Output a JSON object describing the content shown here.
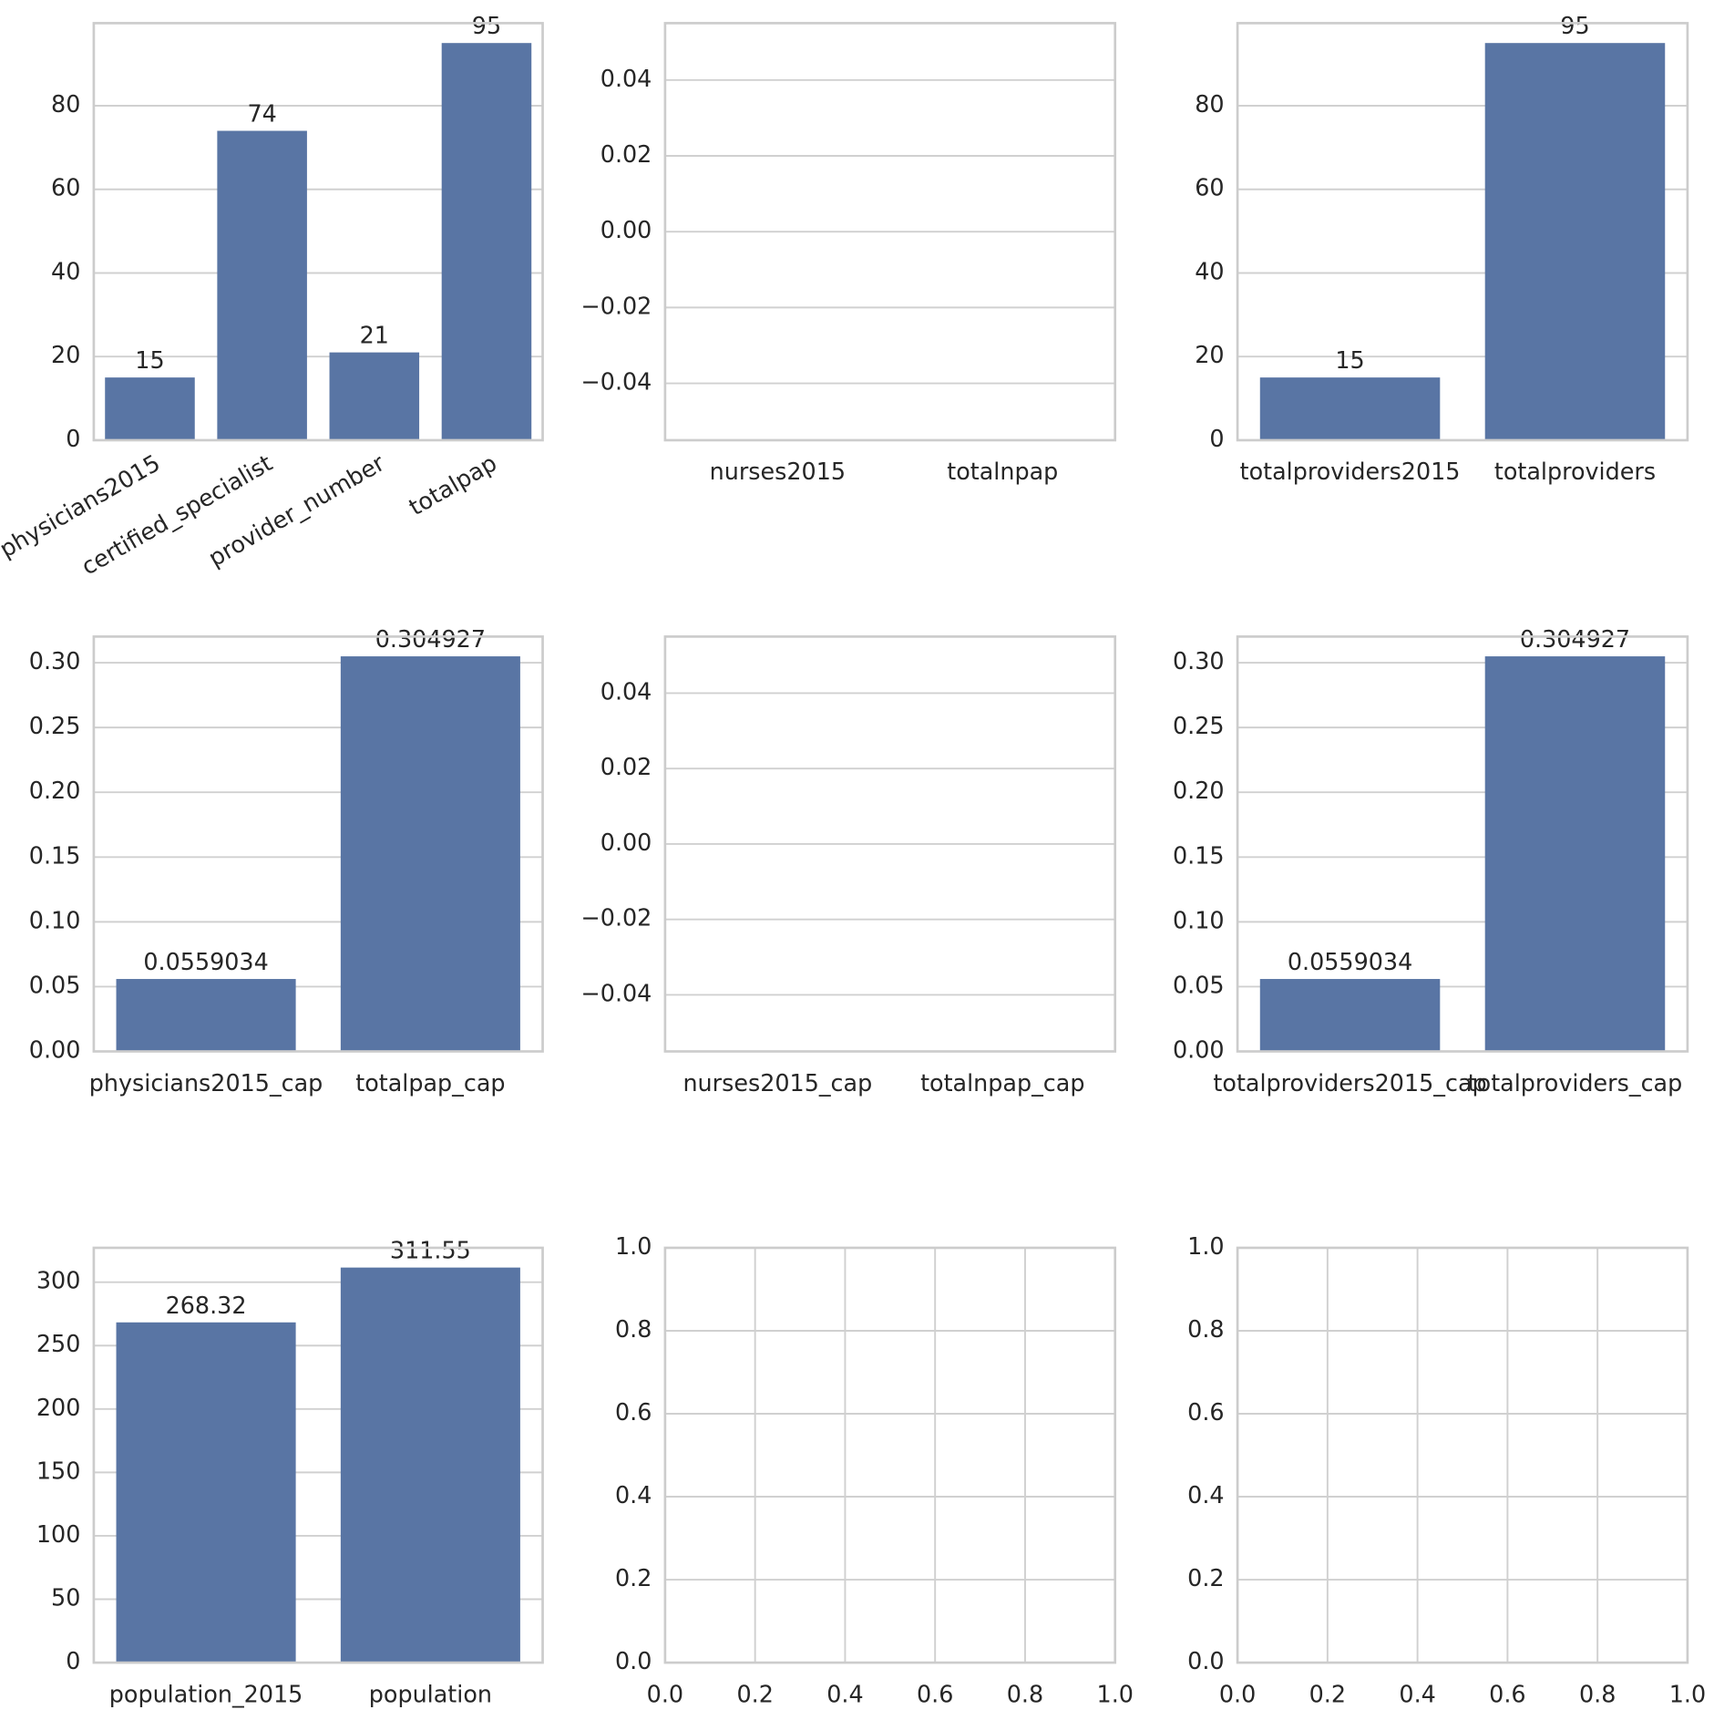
{
  "chart_data": [
    {
      "type": "bar",
      "categories": [
        "physicians2015",
        "certified_specialist",
        "provider_number",
        "totalpap"
      ],
      "values": [
        15,
        74,
        21,
        95
      ],
      "color": "#5975a4",
      "ylim": [
        0,
        99.75
      ],
      "yticks": [
        0,
        20,
        40,
        60,
        80
      ],
      "grid": true,
      "rotate_labels": true
    },
    {
      "type": "bar",
      "categories": [
        "nurses2015",
        "totalnpap"
      ],
      "values": [
        null,
        null
      ],
      "color": "#5975a4",
      "ylim": [
        -0.055,
        0.055
      ],
      "yticks": [
        {
          "value": -0.04,
          "label": "−0.04"
        },
        {
          "value": -0.02,
          "label": "−0.02"
        },
        {
          "value": 0,
          "label": "0.00"
        },
        {
          "value": 0.02,
          "label": "0.02"
        },
        {
          "value": 0.04,
          "label": "0.04"
        }
      ],
      "grid": true
    },
    {
      "type": "bar",
      "categories": [
        "totalproviders2015",
        "totalproviders"
      ],
      "values": [
        15,
        95
      ],
      "color": "#5975a4",
      "ylim": [
        0,
        99.75
      ],
      "yticks": [
        0,
        20,
        40,
        60,
        80
      ],
      "grid": true
    },
    {
      "type": "bar",
      "categories": [
        "physicians2015_cap",
        "totalpap_cap"
      ],
      "values": [
        0.0559034,
        0.304927
      ],
      "color": "#5975a4",
      "ylim": [
        0,
        0.32017
      ],
      "yticks": [
        {
          "value": 0,
          "label": "0.00"
        },
        {
          "value": 0.05,
          "label": "0.05"
        },
        {
          "value": 0.1,
          "label": "0.10"
        },
        {
          "value": 0.15,
          "label": "0.15"
        },
        {
          "value": 0.2,
          "label": "0.20"
        },
        {
          "value": 0.25,
          "label": "0.25"
        },
        {
          "value": 0.3,
          "label": "0.30"
        }
      ],
      "grid": true
    },
    {
      "type": "bar",
      "categories": [
        "nurses2015_cap",
        "totalnpap_cap"
      ],
      "values": [
        null,
        null
      ],
      "color": "#5975a4",
      "ylim": [
        -0.055,
        0.055
      ],
      "yticks": [
        {
          "value": -0.04,
          "label": "−0.04"
        },
        {
          "value": -0.02,
          "label": "−0.02"
        },
        {
          "value": 0,
          "label": "0.00"
        },
        {
          "value": 0.02,
          "label": "0.02"
        },
        {
          "value": 0.04,
          "label": "0.04"
        }
      ],
      "grid": true
    },
    {
      "type": "bar",
      "categories": [
        "totalproviders2015_cap",
        "totalproviders_cap"
      ],
      "values": [
        0.0559034,
        0.304927
      ],
      "color": "#5975a4",
      "ylim": [
        0,
        0.32017
      ],
      "yticks": [
        {
          "value": 0,
          "label": "0.00"
        },
        {
          "value": 0.05,
          "label": "0.05"
        },
        {
          "value": 0.1,
          "label": "0.10"
        },
        {
          "value": 0.15,
          "label": "0.15"
        },
        {
          "value": 0.2,
          "label": "0.20"
        },
        {
          "value": 0.25,
          "label": "0.25"
        },
        {
          "value": 0.3,
          "label": "0.30"
        }
      ],
      "grid": true
    },
    {
      "type": "bar",
      "categories": [
        "population_2015",
        "population"
      ],
      "values": [
        268.32,
        311.55
      ],
      "color": "#5975a4",
      "ylim": [
        0,
        327.13
      ],
      "yticks": [
        0,
        50,
        100,
        150,
        200,
        250,
        300
      ],
      "grid": true
    },
    {
      "type": "bar",
      "xlim": [
        0,
        1
      ],
      "xticks": [
        {
          "value": 0,
          "label": "0.0"
        },
        {
          "value": 0.2,
          "label": "0.2"
        },
        {
          "value": 0.4,
          "label": "0.4"
        },
        {
          "value": 0.6,
          "label": "0.6"
        },
        {
          "value": 0.8,
          "label": "0.8"
        },
        {
          "value": 1,
          "label": "1.0"
        }
      ],
      "ylim": [
        0,
        1
      ],
      "yticks": [
        {
          "value": 0,
          "label": "0.0"
        },
        {
          "value": 0.2,
          "label": "0.2"
        },
        {
          "value": 0.4,
          "label": "0.4"
        },
        {
          "value": 0.6,
          "label": "0.6"
        },
        {
          "value": 0.8,
          "label": "0.8"
        },
        {
          "value": 1,
          "label": "1.0"
        }
      ],
      "grid": true
    },
    {
      "type": "bar",
      "xlim": [
        0,
        1
      ],
      "xticks": [
        {
          "value": 0,
          "label": "0.0"
        },
        {
          "value": 0.2,
          "label": "0.2"
        },
        {
          "value": 0.4,
          "label": "0.4"
        },
        {
          "value": 0.6,
          "label": "0.6"
        },
        {
          "value": 0.8,
          "label": "0.8"
        },
        {
          "value": 1,
          "label": "1.0"
        }
      ],
      "ylim": [
        0,
        1
      ],
      "yticks": [
        {
          "value": 0,
          "label": "0.0"
        },
        {
          "value": 0.2,
          "label": "0.2"
        },
        {
          "value": 0.4,
          "label": "0.4"
        },
        {
          "value": 0.6,
          "label": "0.6"
        },
        {
          "value": 0.8,
          "label": "0.8"
        },
        {
          "value": 1,
          "label": "1.0"
        }
      ],
      "grid": true
    }
  ]
}
